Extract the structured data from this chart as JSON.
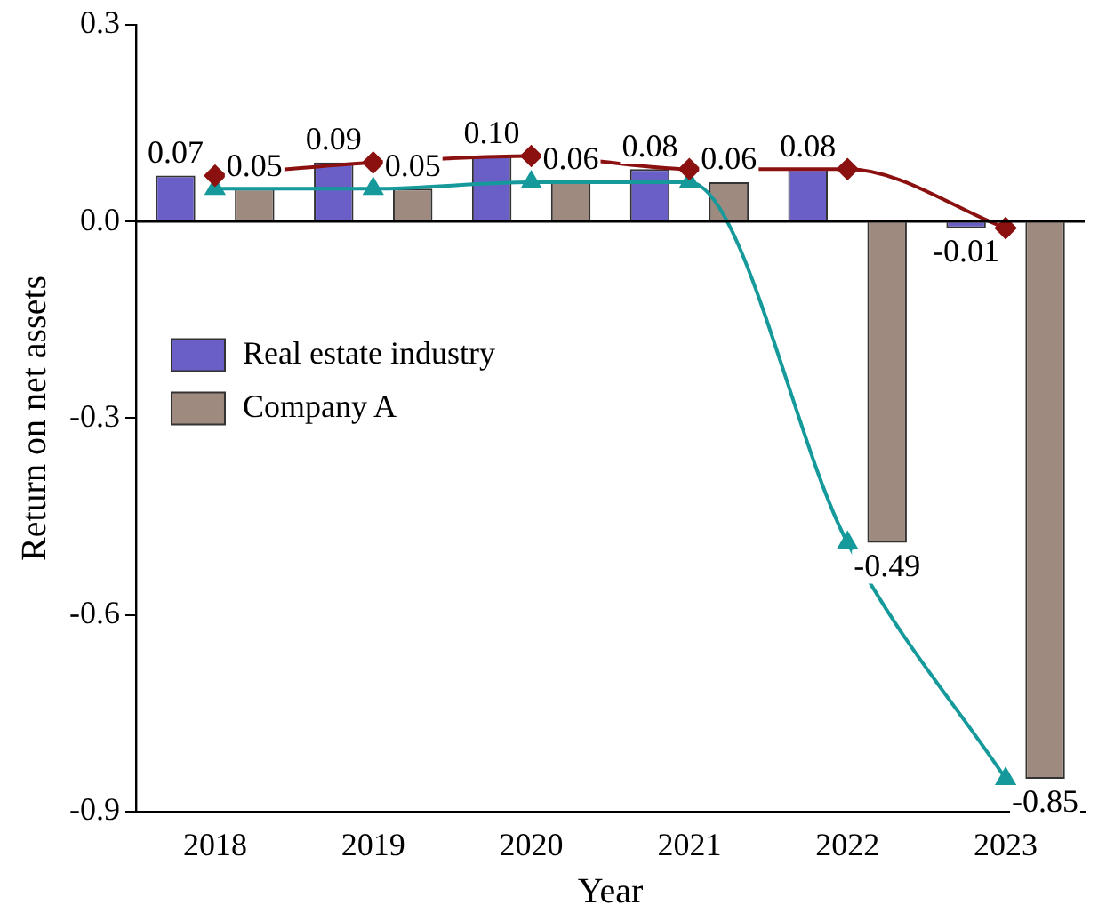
{
  "chart_data": {
    "type": "bar",
    "xlabel": "Year",
    "ylabel": "Return on net assets",
    "categories": [
      "2018",
      "2019",
      "2020",
      "2021",
      "2022",
      "2023"
    ],
    "series": [
      {
        "name": "Real estate industry",
        "color": "#6a5fc6",
        "values": [
          0.07,
          0.09,
          0.1,
          0.08,
          0.08,
          -0.01
        ],
        "value_labels": [
          "0.07",
          "0.09",
          "0.10",
          "0.08",
          "0.08",
          "-0.01"
        ]
      },
      {
        "name": "Company A",
        "color": "#9e8a7e",
        "values": [
          0.05,
          0.05,
          0.06,
          0.06,
          -0.49,
          -0.85
        ],
        "value_labels": [
          "0.05",
          "0.05",
          "0.06",
          "0.06",
          "-0.49",
          "-0.85"
        ]
      },
      {
        "type": "line",
        "color": "#8b1010",
        "marker": "diamond",
        "values": [
          0.07,
          0.09,
          0.1,
          0.08,
          0.08,
          -0.01
        ]
      },
      {
        "type": "line",
        "color": "#15999a",
        "marker": "triangle",
        "values": [
          0.05,
          0.05,
          0.06,
          0.06,
          -0.49,
          -0.85
        ]
      }
    ],
    "ylim": [
      -0.9,
      0.3
    ],
    "yticks": [
      {
        "value": -0.9,
        "label": "-0.9"
      },
      {
        "value": -0.6,
        "label": "-0.6"
      },
      {
        "value": -0.3,
        "label": "-0.3"
      },
      {
        "value": 0,
        "label": "0.0"
      },
      {
        "value": 0.3,
        "label": "0.3"
      }
    ],
    "ref_lines": [
      {
        "axis": "y",
        "value": 0,
        "color": "#000000"
      }
    ],
    "grid": false,
    "legend": "left"
  }
}
